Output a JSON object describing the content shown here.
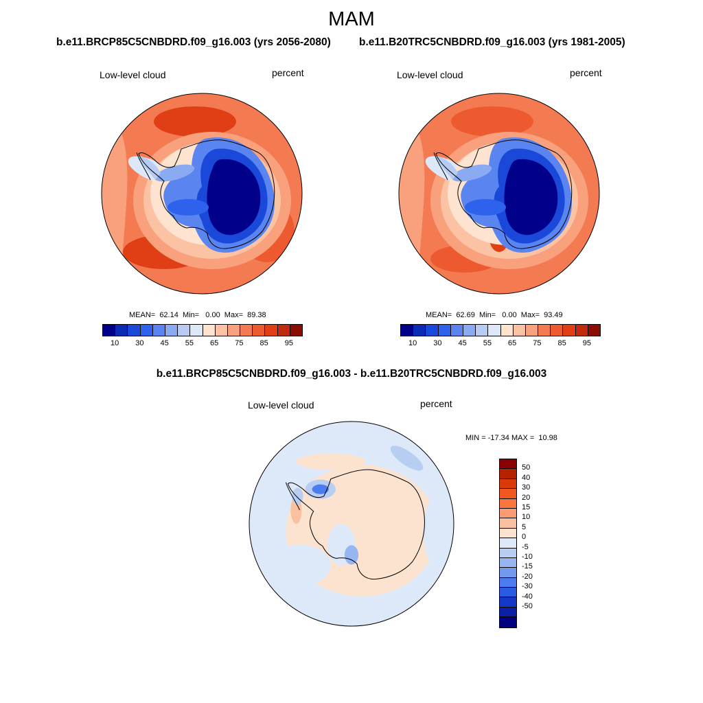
{
  "title": "MAM",
  "left_run": "b.e11.BRCP85C5CNBDRD.f09_g16.003 (yrs 2056-2080)",
  "right_run": "b.e11.B20TRC5CNBDRD.f09_g16.003 (yrs 1981-2005)",
  "diff_title": "b.e11.BRCP85C5CNBDRD.f09_g16.003 - b.e11.B20TRC5CNBDRD.f09_g16.003",
  "panels": {
    "left": {
      "variable": "Low-level cloud",
      "units": "percent",
      "stats": "MEAN=  62.14  Min=   0.00  Max=  89.38"
    },
    "right": {
      "variable": "Low-level cloud",
      "units": "percent",
      "stats": "MEAN=  62.69  Min=   0.00  Max=  93.49"
    },
    "diff": {
      "variable": "Low-level cloud",
      "units": "percent",
      "stats": "MIN = -17.34 MAX =  10.98"
    }
  },
  "abs_colorbar": {
    "colors": [
      "#00008b",
      "#0a2bb4",
      "#1a48d8",
      "#2f62ec",
      "#5a84f0",
      "#8aaaf2",
      "#b8cbf4",
      "#dce8f8",
      "#fde3d0",
      "#fbc3a3",
      "#f9a07c",
      "#f47a51",
      "#ee5a2f",
      "#e03f16",
      "#c12a0c",
      "#8b0c00"
    ],
    "tick_labels": [
      "10",
      "30",
      "45",
      "55",
      "65",
      "75",
      "85",
      "95"
    ]
  },
  "diff_colorbar": {
    "colors": [
      "#8b0000",
      "#b62200",
      "#d83a0a",
      "#f0581f",
      "#f9773f",
      "#f99c73",
      "#f9c1a0",
      "#fbe3cf",
      "#dde9f8",
      "#b8cdf2",
      "#97b5f0",
      "#7399ef",
      "#4d7cf0",
      "#2a5be3",
      "#1438c7",
      "#0a1ea6",
      "#000080"
    ],
    "tick_labels": [
      "50",
      "40",
      "30",
      "20",
      "15",
      "10",
      "5",
      "0",
      "-5",
      "-10",
      "-15",
      "-20",
      "-30",
      "-40",
      "-50"
    ]
  }
}
